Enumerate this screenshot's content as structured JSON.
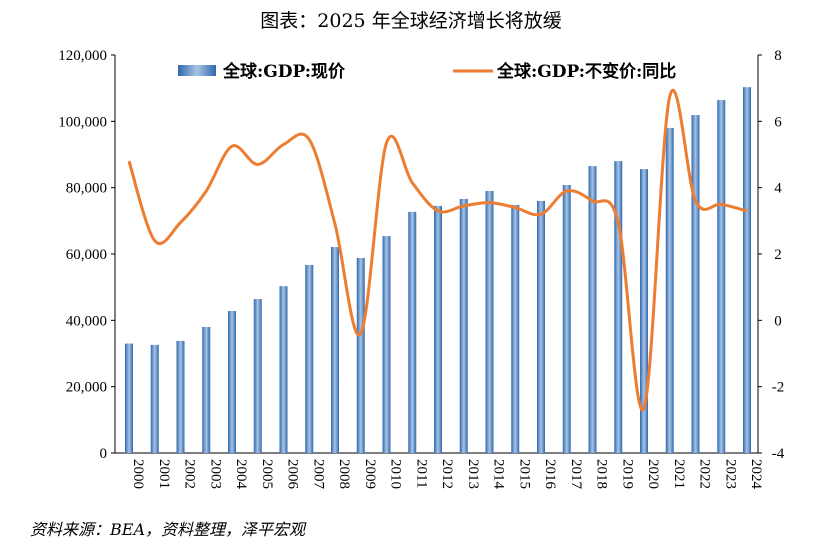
{
  "title": "图表：2025 年全球经济增长将放缓",
  "source": "资料来源：BEA，资料整理，泽平宏观",
  "chart_data": {
    "type": "bar+line",
    "title": "图表：2025 年全球经济增长将放缓",
    "categories": [
      "2000",
      "2001",
      "2002",
      "2003",
      "2004",
      "2005",
      "2006",
      "2007",
      "2008",
      "2009",
      "2010",
      "2011",
      "2012",
      "2013",
      "2014",
      "2015",
      "2016",
      "2017",
      "2018",
      "2019",
      "2020",
      "2021",
      "2022",
      "2023",
      "2024"
    ],
    "series": [
      {
        "name": "全球:GDP:现价",
        "type": "bar",
        "axis": "left",
        "color": "#4f81bd",
        "values": [
          33000,
          32600,
          33800,
          38000,
          42800,
          46400,
          50300,
          56700,
          62100,
          58800,
          65400,
          72700,
          74500,
          76600,
          79000,
          74800,
          76000,
          80800,
          86500,
          88000,
          85600,
          98000,
          101900,
          106400,
          110300
        ]
      },
      {
        "name": "全球:GDP:不变价:同比",
        "type": "line",
        "axis": "right",
        "color": "#ed7d31",
        "values": [
          4.8,
          2.4,
          2.95,
          3.9,
          5.25,
          4.7,
          5.3,
          5.45,
          2.9,
          -0.4,
          5.35,
          4.15,
          3.3,
          3.45,
          3.55,
          3.4,
          3.2,
          3.9,
          3.6,
          2.95,
          -2.65,
          6.75,
          3.6,
          3.5,
          3.3
        ]
      }
    ],
    "left_axis": {
      "ylim": [
        0,
        120000
      ],
      "ticks": [
        "0",
        "20,000",
        "40,000",
        "60,000",
        "80,000",
        "100,000",
        "120,000"
      ]
    },
    "right_axis": {
      "ylim": [
        -4,
        8
      ],
      "ticks": [
        "-4",
        "-2",
        "0",
        "2",
        "4",
        "6",
        "8"
      ]
    },
    "grid": false,
    "legend": "top"
  }
}
